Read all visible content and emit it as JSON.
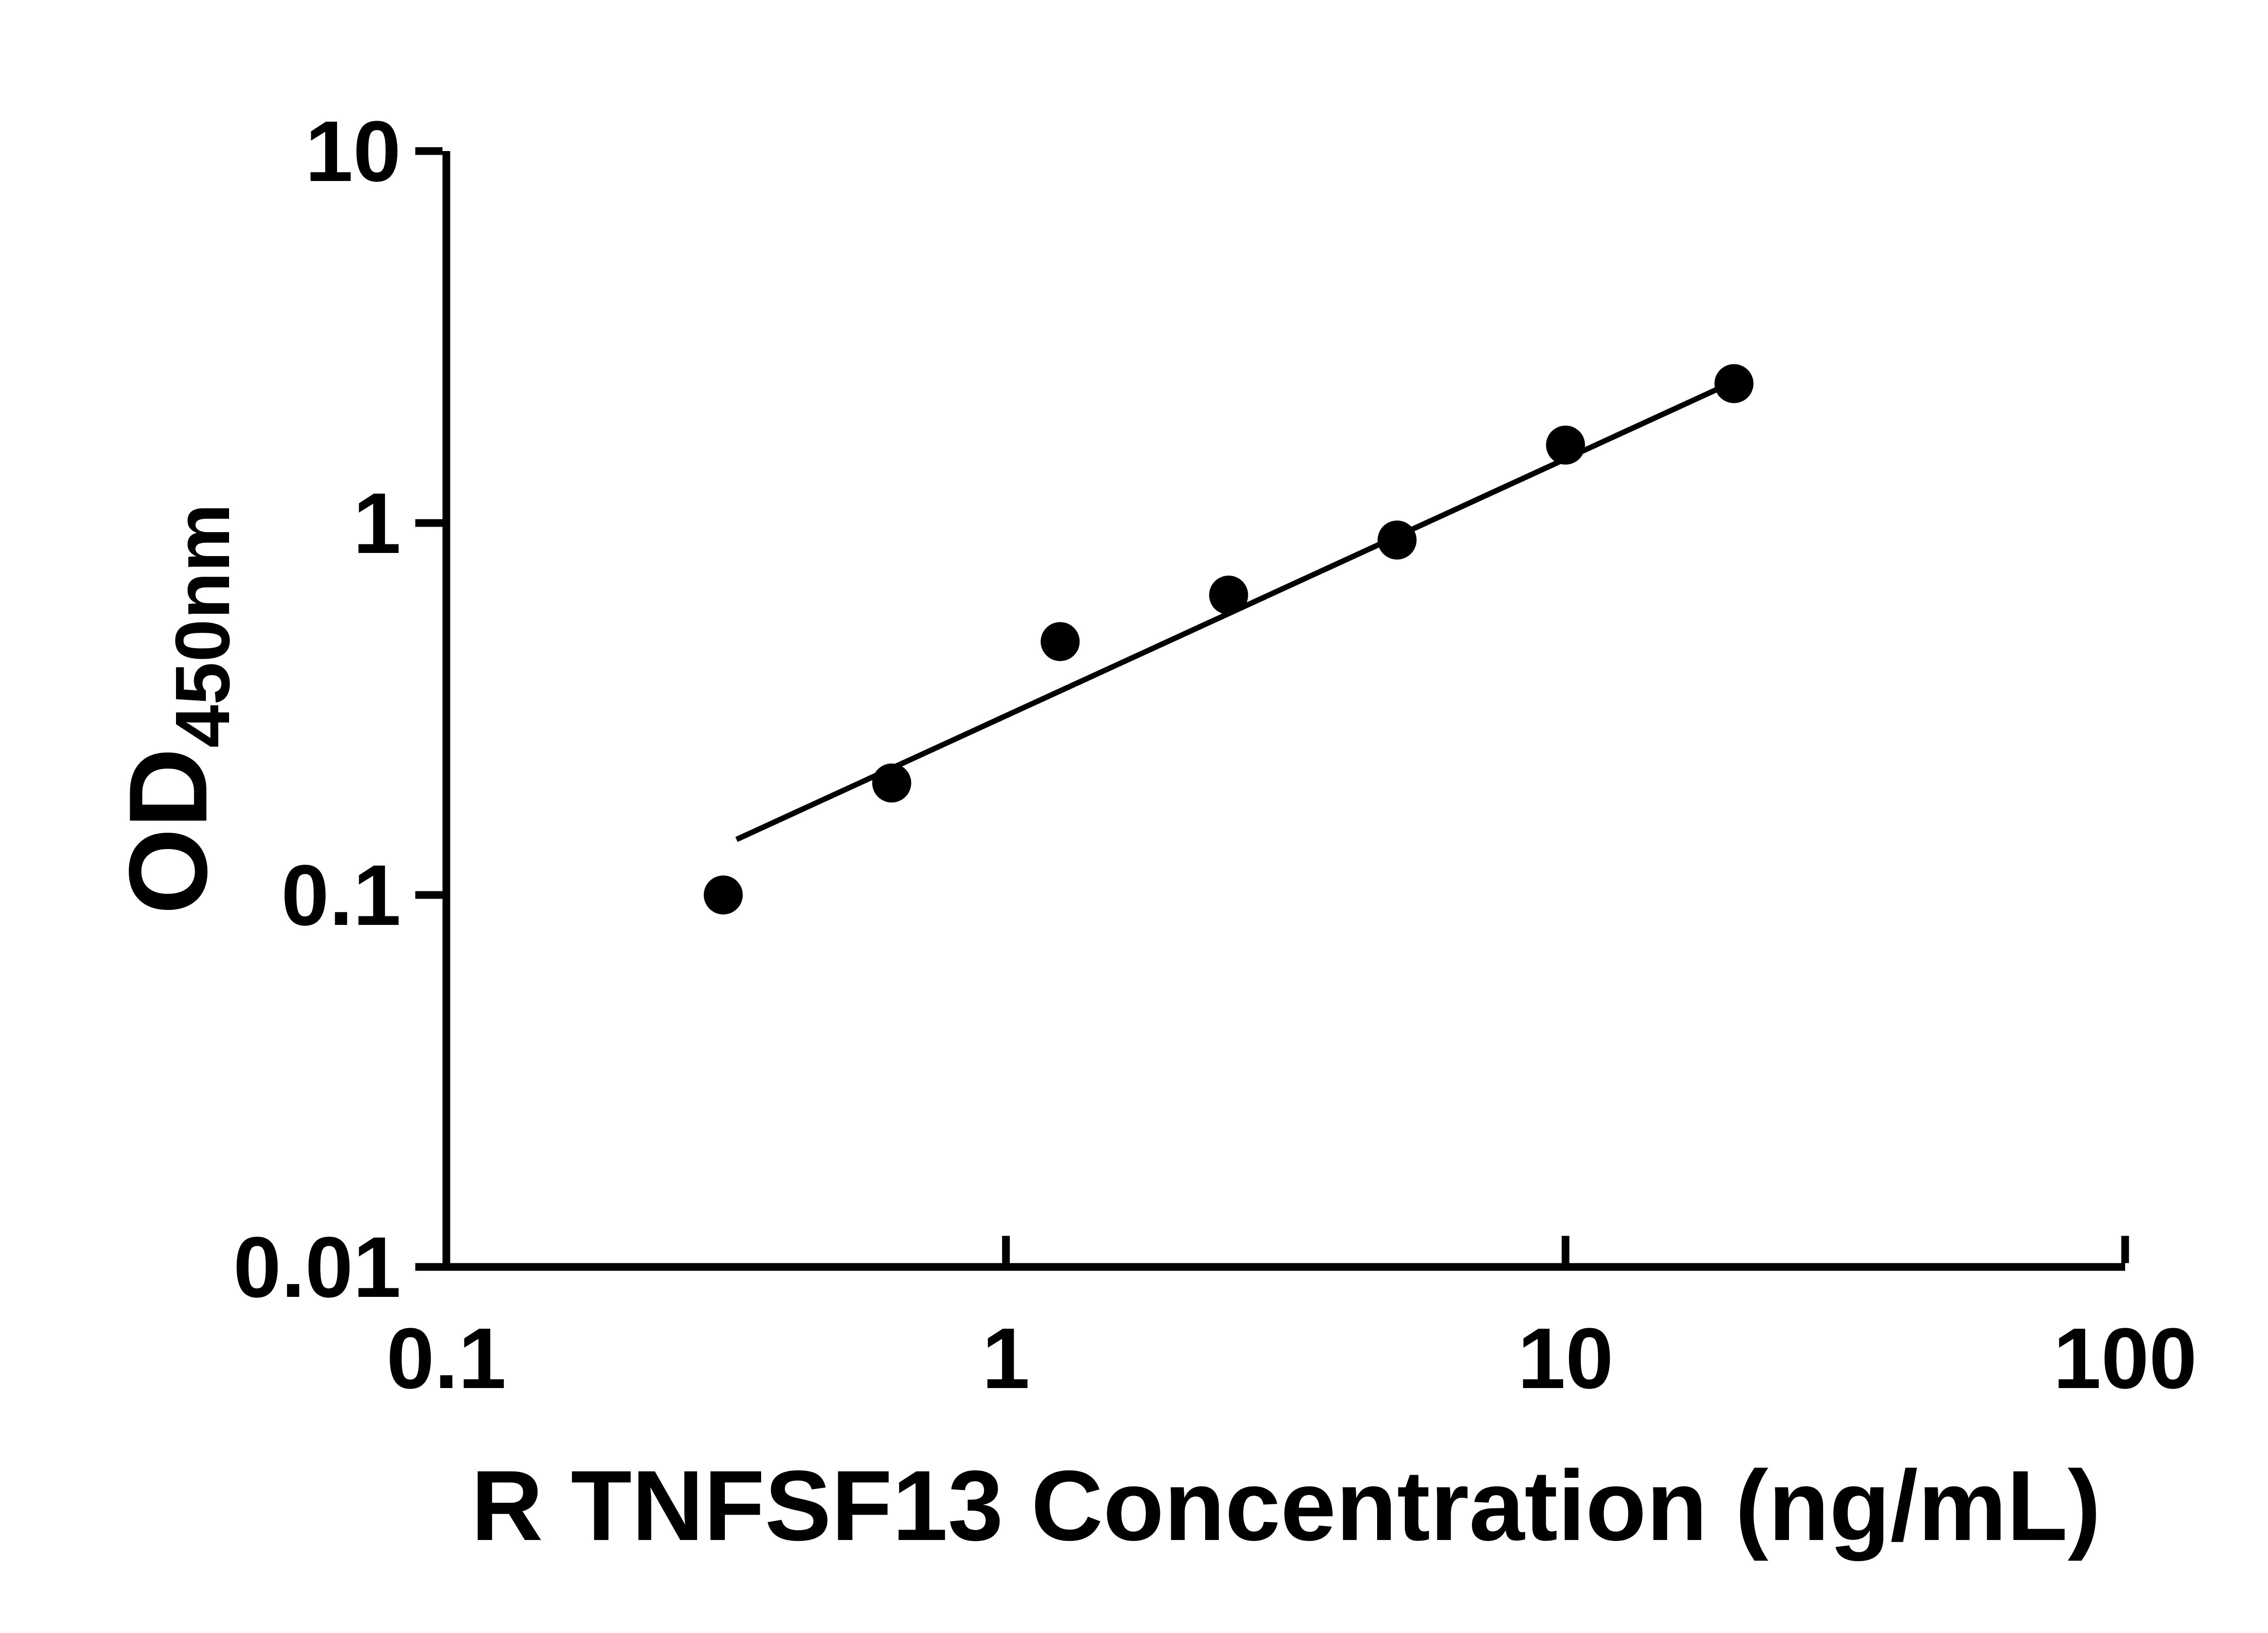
{
  "figure": {
    "background": "#ffffff"
  },
  "chart_data": {
    "type": "scatter",
    "title": "",
    "xlabel": "R TNFSF13 Concentration (ng/mL)",
    "ylabel": "OD450nm",
    "ylabel_main": "OD",
    "ylabel_sub": "450nm",
    "x_scale": "log",
    "y_scale": "log",
    "xlim": [
      0.1,
      100
    ],
    "ylim": [
      0.01,
      10
    ],
    "x_ticks": [
      0.1,
      1,
      10,
      100
    ],
    "x_tick_labels": [
      "0.1",
      "1",
      "10",
      "100"
    ],
    "y_ticks": [
      0.01,
      0.1,
      1,
      10
    ],
    "y_tick_labels": [
      "0.01",
      "0.1",
      "1",
      "10"
    ],
    "grid": false,
    "legend": false,
    "axis_color": "#000000",
    "series": [
      {
        "marker": "circle",
        "color": "#000000",
        "points": [
          {
            "x": 0.3125,
            "y": 0.1
          },
          {
            "x": 0.625,
            "y": 0.2
          },
          {
            "x": 1.25,
            "y": 0.48
          },
          {
            "x": 2.5,
            "y": 0.64
          },
          {
            "x": 5,
            "y": 0.9
          },
          {
            "x": 10,
            "y": 1.62
          },
          {
            "x": 20,
            "y": 2.37
          }
        ]
      }
    ],
    "trend_line": {
      "color": "#000000",
      "x_start": 0.33,
      "y_start": 0.141,
      "x_end": 20,
      "y_end": 2.4
    }
  }
}
